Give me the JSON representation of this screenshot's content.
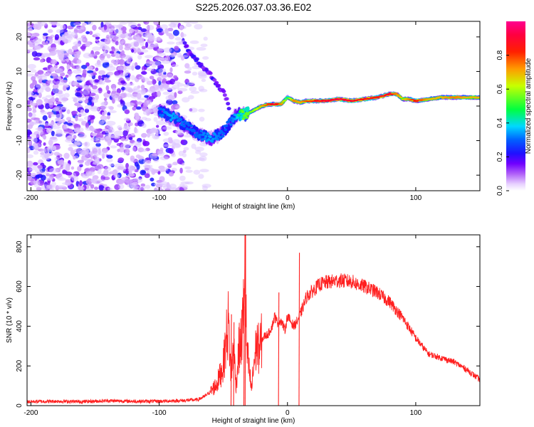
{
  "title": "S225.2026.037.03.36.E02",
  "chart_data": [
    {
      "type": "heatmap",
      "title": "S225.2026.037.03.36.E02",
      "xlabel": "Height of straight line (km)",
      "ylabel": "Frequency (Hz)",
      "xlim": [
        -203,
        150
      ],
      "ylim": [
        -24.5,
        24.5
      ],
      "xticks": [
        -200,
        -100,
        0,
        100
      ],
      "xtick_labels": [
        "-200",
        "-100",
        "0",
        "100"
      ],
      "yticks": [
        -20,
        -10,
        0,
        10,
        20
      ],
      "ytick_labels": [
        "-20",
        "-10",
        "0",
        "10",
        "20"
      ],
      "colorbar": {
        "label": "Normalized spectral amplitude",
        "range": [
          0,
          1
        ],
        "ticks": [
          0.0,
          0.2,
          0.4,
          0.6,
          0.8
        ],
        "tick_labels": [
          "0.0",
          "0.2",
          "0.4",
          "0.6",
          "0.8"
        ],
        "colors": [
          "#ffffff",
          "#a020f0",
          "#4400ff",
          "#0000ff",
          "#00d8ff",
          "#00ff40",
          "#c8ff00",
          "#ff7a00",
          "#ff0000",
          "#ff0080"
        ]
      },
      "ridge": {
        "x": [
          -100,
          -90,
          -80,
          -70,
          -60,
          -50,
          -45,
          -40,
          -35,
          -30,
          -25,
          -20,
          -15,
          -10,
          -5,
          0,
          5,
          10,
          15,
          20,
          30,
          40,
          50,
          60,
          70,
          80,
          85,
          90,
          95,
          100,
          110,
          120,
          130,
          140,
          150
        ],
        "freq": [
          -1.5,
          -3.0,
          -5.5,
          -8.0,
          -9.5,
          -7.5,
          -5.0,
          -2.5,
          -2.5,
          -2.0,
          -1.0,
          0.0,
          0.5,
          0.5,
          0.5,
          2.5,
          1.5,
          1.0,
          1.5,
          1.5,
          1.5,
          2.0,
          1.5,
          2.0,
          2.5,
          3.5,
          3.5,
          2.0,
          2.0,
          1.5,
          2.0,
          2.5,
          2.5,
          2.5,
          2.5
        ],
        "amplitude": [
          0.3,
          0.35,
          0.3,
          0.3,
          0.35,
          0.3,
          0.3,
          0.35,
          0.55,
          0.55,
          0.6,
          0.7,
          0.8,
          0.9,
          0.75,
          0.5,
          0.75,
          0.7,
          0.8,
          0.85,
          0.9,
          0.92,
          0.9,
          0.85,
          0.85,
          0.9,
          0.75,
          0.65,
          0.75,
          0.85,
          0.7,
          0.7,
          0.75,
          0.7,
          0.7
        ]
      },
      "arc": {
        "x": [
          -80,
          -75,
          -70,
          -65,
          -60,
          -55,
          -50,
          -47,
          -45
        ],
        "freq": [
          18,
          15,
          13,
          11,
          9,
          6.5,
          4,
          1.5,
          -1
        ]
      }
    },
    {
      "type": "line",
      "title": "",
      "xlabel": "Height of straight line (km)",
      "ylabel": "SNR (10 * v/v)",
      "xlim": [
        -203,
        150
      ],
      "ylim": [
        0,
        860
      ],
      "xticks": [
        -200,
        -100,
        0,
        100
      ],
      "xtick_labels": [
        "-200",
        "-100",
        "0",
        "100"
      ],
      "yticks": [
        0,
        200,
        400,
        600,
        800
      ],
      "ytick_labels": [
        "0",
        "200",
        "400",
        "600",
        "800"
      ],
      "series": [
        {
          "name": "SNR",
          "color": "#ff2020",
          "x": [
            -203,
            -180,
            -160,
            -140,
            -120,
            -100,
            -80,
            -70,
            -65,
            -60,
            -55,
            -50,
            -48,
            -46,
            -44,
            -42,
            -40,
            -38,
            -36,
            -34,
            -33,
            -32,
            -30,
            -28,
            -26,
            -24,
            -22,
            -20,
            -18,
            -15,
            -12,
            -10,
            -8,
            -5,
            -2,
            0,
            5,
            8,
            10,
            15,
            20,
            25,
            30,
            40,
            50,
            55,
            60,
            70,
            80,
            90,
            100,
            105,
            110,
            120,
            130,
            140,
            150
          ],
          "y": [
            20,
            22,
            20,
            25,
            22,
            22,
            26,
            30,
            45,
            70,
            110,
            200,
            320,
            420,
            150,
            300,
            100,
            280,
            320,
            500,
            860,
            300,
            180,
            80,
            220,
            310,
            280,
            330,
            350,
            360,
            400,
            450,
            420,
            430,
            380,
            450,
            400,
            430,
            460,
            550,
            580,
            610,
            620,
            630,
            625,
            610,
            600,
            570,
            520,
            440,
            340,
            300,
            260,
            240,
            220,
            180,
            130
          ],
          "spikes": [
            {
              "x": -33,
              "y": 860
            },
            {
              "x": -34,
              "y": 500
            },
            {
              "x": -44,
              "y": 460
            },
            {
              "x": -42,
              "y": 420
            },
            {
              "x": -7,
              "y": 570
            },
            {
              "x": 9,
              "y": 770
            }
          ]
        }
      ]
    }
  ]
}
